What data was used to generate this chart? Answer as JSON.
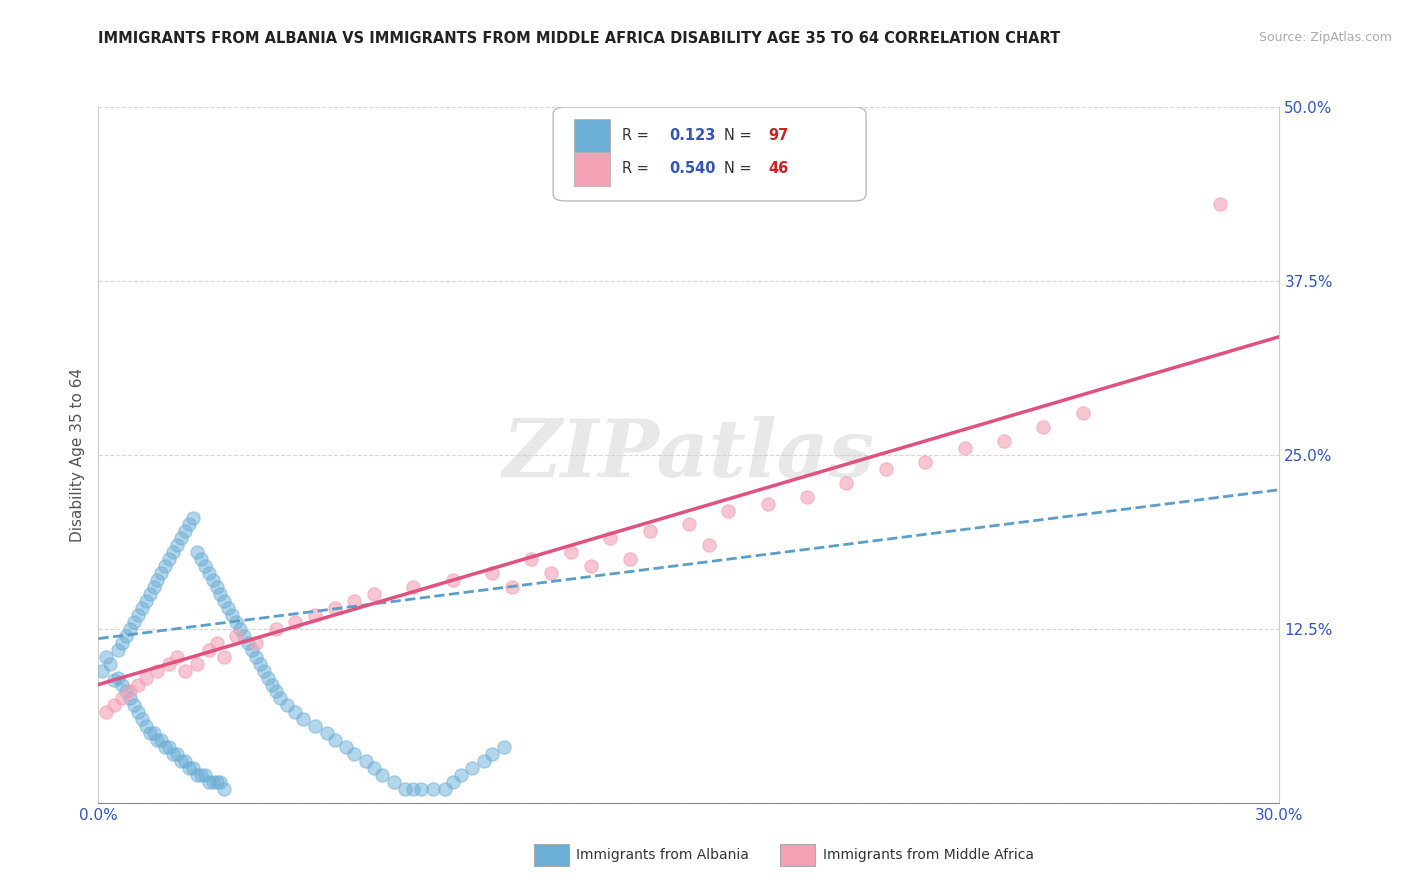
{
  "title": "IMMIGRANTS FROM ALBANIA VS IMMIGRANTS FROM MIDDLE AFRICA DISABILITY AGE 35 TO 64 CORRELATION CHART",
  "source": "Source: ZipAtlas.com",
  "ylabel": "Disability Age 35 to 64",
  "xlim": [
    0.0,
    0.3
  ],
  "ylim": [
    0.0,
    0.5
  ],
  "xticks": [
    0.0,
    0.05,
    0.1,
    0.15,
    0.2,
    0.25,
    0.3
  ],
  "xticklabels": [
    "0.0%",
    "",
    "",
    "",
    "",
    "",
    "30.0%"
  ],
  "yticks": [
    0.0,
    0.125,
    0.25,
    0.375,
    0.5
  ],
  "yticklabels": [
    "",
    "12.5%",
    "25.0%",
    "37.5%",
    "50.0%"
  ],
  "albania_R": 0.123,
  "albania_N": 97,
  "middleafrica_R": 0.54,
  "middleafrica_N": 46,
  "albania_color": "#6baed6",
  "middleafrica_color": "#f4a0b5",
  "albania_trendline_color": "#5b9ec9",
  "middleafrica_trendline_color": "#e05080",
  "watermark": "ZIPatlas",
  "background_color": "#ffffff",
  "legend_label_albania": "Immigrants from Albania",
  "legend_label_middleafrica": "Immigrants from Middle Africa",
  "albania_scatter_x": [
    0.001,
    0.002,
    0.003,
    0.004,
    0.005,
    0.005,
    0.006,
    0.006,
    0.007,
    0.007,
    0.008,
    0.008,
    0.009,
    0.009,
    0.01,
    0.01,
    0.011,
    0.011,
    0.012,
    0.012,
    0.013,
    0.013,
    0.014,
    0.014,
    0.015,
    0.015,
    0.016,
    0.016,
    0.017,
    0.017,
    0.018,
    0.018,
    0.019,
    0.019,
    0.02,
    0.02,
    0.021,
    0.021,
    0.022,
    0.022,
    0.023,
    0.023,
    0.024,
    0.024,
    0.025,
    0.025,
    0.026,
    0.026,
    0.027,
    0.027,
    0.028,
    0.028,
    0.029,
    0.029,
    0.03,
    0.03,
    0.031,
    0.031,
    0.032,
    0.032,
    0.033,
    0.034,
    0.035,
    0.036,
    0.037,
    0.038,
    0.039,
    0.04,
    0.041,
    0.042,
    0.043,
    0.044,
    0.045,
    0.046,
    0.048,
    0.05,
    0.052,
    0.055,
    0.058,
    0.06,
    0.063,
    0.065,
    0.068,
    0.07,
    0.072,
    0.075,
    0.078,
    0.08,
    0.082,
    0.085,
    0.088,
    0.09,
    0.092,
    0.095,
    0.098,
    0.1,
    0.103
  ],
  "albania_scatter_y": [
    0.095,
    0.105,
    0.1,
    0.088,
    0.11,
    0.09,
    0.115,
    0.085,
    0.12,
    0.08,
    0.125,
    0.075,
    0.13,
    0.07,
    0.135,
    0.065,
    0.14,
    0.06,
    0.145,
    0.055,
    0.15,
    0.05,
    0.155,
    0.05,
    0.16,
    0.045,
    0.165,
    0.045,
    0.17,
    0.04,
    0.175,
    0.04,
    0.18,
    0.035,
    0.185,
    0.035,
    0.19,
    0.03,
    0.195,
    0.03,
    0.2,
    0.025,
    0.205,
    0.025,
    0.18,
    0.02,
    0.175,
    0.02,
    0.17,
    0.02,
    0.165,
    0.015,
    0.16,
    0.015,
    0.155,
    0.015,
    0.15,
    0.015,
    0.145,
    0.01,
    0.14,
    0.135,
    0.13,
    0.125,
    0.12,
    0.115,
    0.11,
    0.105,
    0.1,
    0.095,
    0.09,
    0.085,
    0.08,
    0.075,
    0.07,
    0.065,
    0.06,
    0.055,
    0.05,
    0.045,
    0.04,
    0.035,
    0.03,
    0.025,
    0.02,
    0.015,
    0.01,
    0.01,
    0.01,
    0.01,
    0.01,
    0.015,
    0.02,
    0.025,
    0.03,
    0.035,
    0.04
  ],
  "middleafrica_scatter_x": [
    0.002,
    0.004,
    0.006,
    0.008,
    0.01,
    0.012,
    0.015,
    0.018,
    0.02,
    0.022,
    0.025,
    0.028,
    0.03,
    0.032,
    0.035,
    0.04,
    0.045,
    0.05,
    0.055,
    0.06,
    0.065,
    0.07,
    0.08,
    0.09,
    0.1,
    0.11,
    0.12,
    0.13,
    0.14,
    0.15,
    0.16,
    0.17,
    0.18,
    0.19,
    0.2,
    0.21,
    0.22,
    0.23,
    0.24,
    0.25,
    0.105,
    0.115,
    0.125,
    0.135,
    0.155,
    0.285
  ],
  "middleafrica_scatter_y": [
    0.065,
    0.07,
    0.075,
    0.08,
    0.085,
    0.09,
    0.095,
    0.1,
    0.105,
    0.095,
    0.1,
    0.11,
    0.115,
    0.105,
    0.12,
    0.115,
    0.125,
    0.13,
    0.135,
    0.14,
    0.145,
    0.15,
    0.155,
    0.16,
    0.165,
    0.175,
    0.18,
    0.19,
    0.195,
    0.2,
    0.21,
    0.215,
    0.22,
    0.23,
    0.24,
    0.245,
    0.255,
    0.26,
    0.27,
    0.28,
    0.155,
    0.165,
    0.17,
    0.175,
    0.185,
    0.43
  ],
  "albania_trend_x": [
    0.0,
    0.3
  ],
  "albania_trend_y": [
    0.118,
    0.225
  ],
  "middleafrica_trend_x": [
    0.0,
    0.3
  ],
  "middleafrica_trend_y": [
    0.085,
    0.335
  ]
}
